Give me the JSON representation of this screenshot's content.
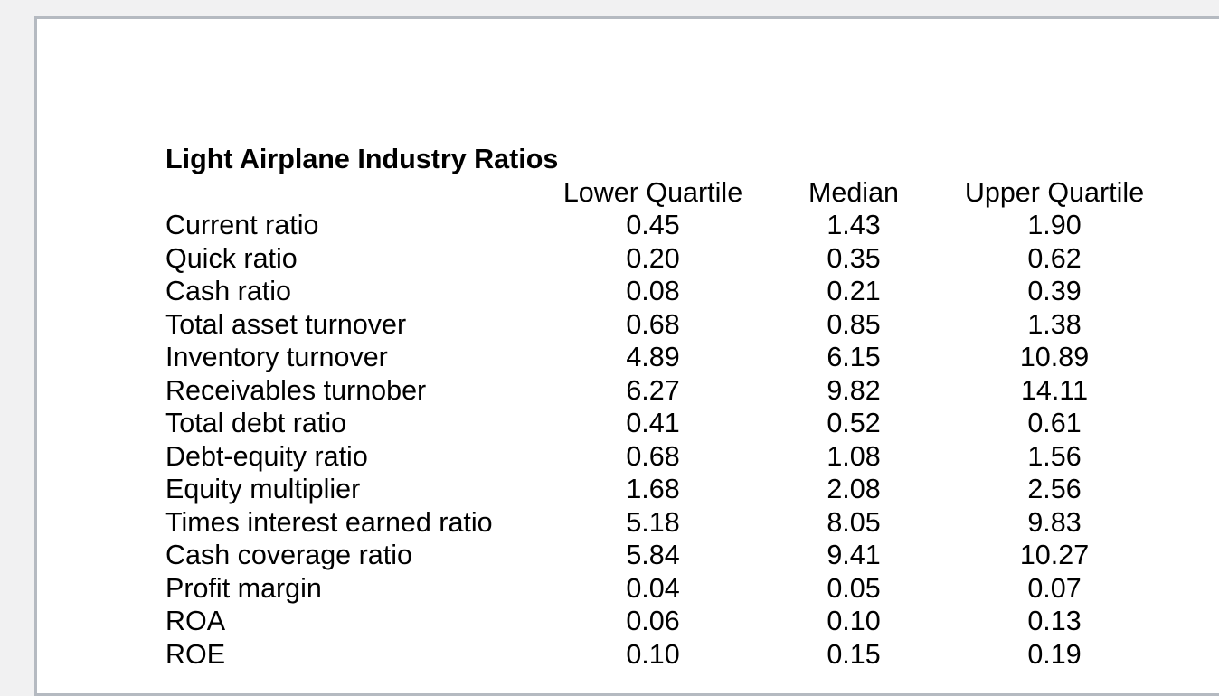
{
  "page": {
    "background_color": "#f1f1f2",
    "panel_background": "#ffffff",
    "panel_border_color": "#b5bac1",
    "text_color": "#000000"
  },
  "table": {
    "title": "Light Airplane Industry Ratios",
    "columns": [
      "Lower Quartile",
      "Median",
      "Upper Quartile"
    ],
    "rows": [
      {
        "label": "Current ratio",
        "values": [
          "0.45",
          "1.43",
          "1.90"
        ]
      },
      {
        "label": "Quick ratio",
        "values": [
          "0.20",
          "0.35",
          "0.62"
        ]
      },
      {
        "label": "Cash ratio",
        "values": [
          "0.08",
          "0.21",
          "0.39"
        ]
      },
      {
        "label": "Total asset turnover",
        "values": [
          "0.68",
          "0.85",
          "1.38"
        ]
      },
      {
        "label": "Inventory turnover",
        "values": [
          "4.89",
          "6.15",
          "10.89"
        ]
      },
      {
        "label": "Receivables turnober",
        "values": [
          "6.27",
          "9.82",
          "14.11"
        ]
      },
      {
        "label": "Total debt ratio",
        "values": [
          "0.41",
          "0.52",
          "0.61"
        ]
      },
      {
        "label": "Debt-equity ratio",
        "values": [
          "0.68",
          "1.08",
          "1.56"
        ]
      },
      {
        "label": "Equity multiplier",
        "values": [
          "1.68",
          "2.08",
          "2.56"
        ]
      },
      {
        "label": "Times interest earned ratio",
        "values": [
          "5.18",
          "8.05",
          "9.83"
        ]
      },
      {
        "label": "Cash coverage ratio",
        "values": [
          "5.84",
          "9.41",
          "10.27"
        ]
      },
      {
        "label": "Profit margin",
        "values": [
          "0.04",
          "0.05",
          "0.07"
        ]
      },
      {
        "label": "ROA",
        "values": [
          "0.06",
          "0.10",
          "0.13"
        ]
      },
      {
        "label": "ROE",
        "values": [
          "0.10",
          "0.15",
          "0.19"
        ]
      }
    ]
  }
}
